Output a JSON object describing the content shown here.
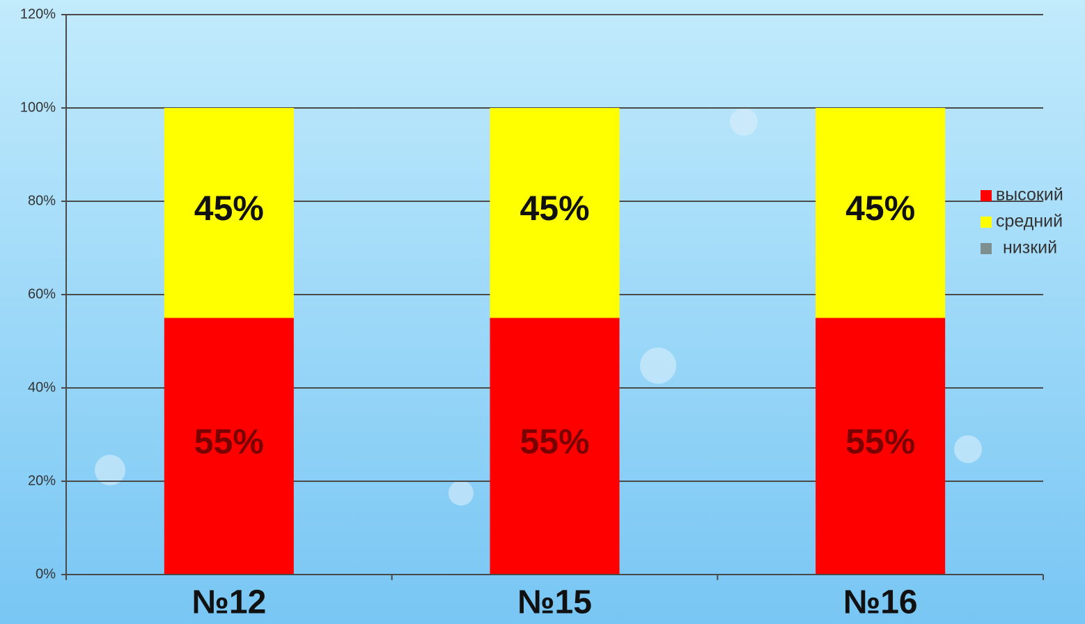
{
  "chart_data": {
    "type": "bar",
    "stacked": true,
    "categories": [
      "№12",
      "№15",
      "№16"
    ],
    "series": [
      {
        "name": "высокий",
        "color": "#ff0000",
        "values": [
          55,
          55,
          55
        ],
        "value_labels": [
          "55%",
          "55%",
          "55%"
        ]
      },
      {
        "name": "средний",
        "color": "#ffff00",
        "values": [
          45,
          45,
          45
        ],
        "value_labels": [
          "45%",
          "45%",
          "45%"
        ]
      },
      {
        "name": "низкий",
        "color": "#7f8f8f",
        "values": [
          0,
          0,
          0
        ]
      }
    ],
    "ylim": [
      0,
      120
    ],
    "yticks": [
      {
        "value": 0,
        "label": "0%"
      },
      {
        "value": 20,
        "label": "20%"
      },
      {
        "value": 40,
        "label": "40%"
      },
      {
        "value": 60,
        "label": "60%"
      },
      {
        "value": 80,
        "label": "80%"
      },
      {
        "value": 100,
        "label": "100%"
      },
      {
        "value": 120,
        "label": "120%"
      }
    ],
    "grid": true,
    "legend": "right"
  }
}
